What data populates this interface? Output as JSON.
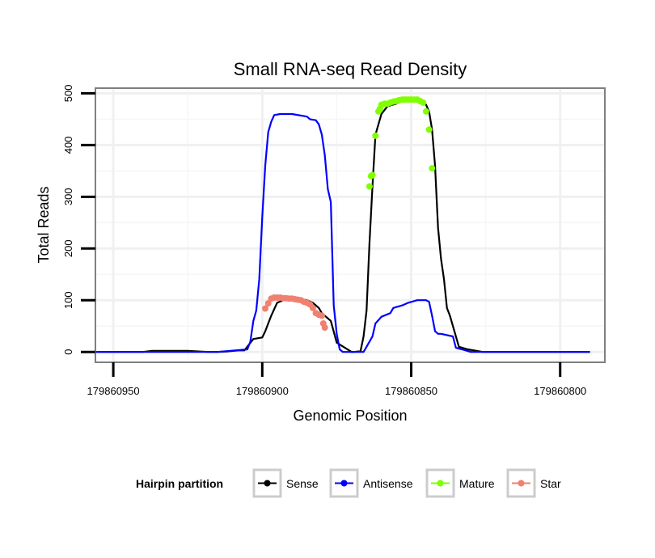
{
  "chart_data": {
    "type": "line",
    "title": "Small RNA-seq Read Density",
    "xlabel": "Genomic Position",
    "ylabel": "Total Reads",
    "xlim": [
      179860956,
      179860785
    ],
    "ylim": [
      -20,
      510
    ],
    "x_ticks": [
      179860950,
      179860900,
      179860850,
      179860800
    ],
    "x_tick_labels": [
      "179860950",
      "179860900",
      "179860850",
      "179860800"
    ],
    "y_ticks": [
      0,
      100,
      200,
      300,
      400,
      500
    ],
    "y_tick_labels": [
      "0",
      "100",
      "200",
      "300",
      "400",
      "500"
    ],
    "grid": true,
    "legend_title": "Hairpin partition",
    "legend_position": "bottom",
    "series": [
      {
        "name": "Sense",
        "color": "#000000",
        "markers": false,
        "x": [
          179860958,
          179860950,
          179860940,
          179860937,
          179860925,
          179860918,
          179860915,
          179860912,
          179860908,
          179860906,
          179860903,
          179860900,
          179860899,
          179860897,
          179860895,
          179860893,
          179860890,
          179860887,
          179860885,
          179860883,
          179860881,
          179860880,
          179860879,
          179860877,
          179860875,
          179860870,
          179860869,
          179860868,
          179860867,
          179860866,
          179860865,
          179860864,
          179860863,
          179860862,
          179860860,
          179860858,
          179860855,
          179860852,
          179860850,
          179860848,
          179860847,
          179860846,
          179860845,
          179860844,
          179860843,
          179860842,
          179860841,
          179860840,
          179860839,
          179860838,
          179860837,
          179860834,
          179860831,
          179860826,
          179860820,
          179860810,
          179860790
        ],
        "y": [
          0,
          0,
          0,
          2,
          2,
          0,
          0,
          1,
          3,
          3,
          25,
          28,
          40,
          70,
          95,
          100,
          102,
          102,
          100,
          95,
          85,
          75,
          70,
          60,
          18,
          0,
          0,
          1,
          2,
          30,
          80,
          210,
          320,
          420,
          460,
          475,
          480,
          488,
          490,
          490,
          489,
          485,
          478,
          465,
          430,
          360,
          240,
          180,
          140,
          85,
          70,
          10,
          5,
          0,
          0,
          0,
          0
        ]
      },
      {
        "name": "Antisense",
        "color": "#0000ff",
        "markers": false,
        "x": [
          179860958,
          179860940,
          179860925,
          179860915,
          179860905,
          179860904,
          179860903,
          179860902,
          179860901,
          179860900,
          179860899,
          179860898,
          179860897,
          179860896,
          179860894,
          179860892,
          179860890,
          179860885,
          179860884,
          179860882,
          179860881,
          179860880,
          179860879,
          179860878,
          179860877,
          179860876,
          179860875,
          179860874,
          179860873,
          179860871,
          179860869,
          179860866,
          179860865,
          179860863,
          179860862,
          179860860,
          179860857,
          179860856,
          179860853,
          179860851,
          179860848,
          179860847,
          179860846,
          179860845,
          179860844,
          179860843,
          179860842,
          179860841,
          179860840,
          179860836,
          179860835,
          179860833,
          179860830,
          179860825,
          179860790
        ],
        "y": [
          0,
          0,
          0,
          0,
          5,
          20,
          60,
          80,
          140,
          260,
          360,
          425,
          445,
          458,
          460,
          460,
          460,
          455,
          450,
          448,
          440,
          420,
          380,
          315,
          290,
          90,
          35,
          5,
          0,
          0,
          0,
          0,
          10,
          30,
          55,
          68,
          75,
          85,
          90,
          95,
          100,
          100,
          100,
          100,
          97,
          70,
          40,
          35,
          35,
          30,
          8,
          5,
          0,
          0,
          0
        ]
      },
      {
        "name": "Mature",
        "color": "#7fff00",
        "markers": true,
        "x": [
          179860864,
          179860863.5,
          179860863,
          179860862,
          179860861,
          179860860.5,
          179860860,
          179860859,
          179860858,
          179860857,
          179860856,
          179860855,
          179860854,
          179860853,
          179860852,
          179860851,
          179860850,
          179860849,
          179860848,
          179860847,
          179860846,
          179860845,
          179860844,
          179860843
        ],
        "y": [
          320,
          340,
          342,
          418,
          465,
          470,
          478,
          480,
          480,
          482,
          484,
          485,
          487,
          488,
          488,
          488,
          488,
          488,
          488,
          485,
          482,
          465,
          430,
          355
        ]
      },
      {
        "name": "Star",
        "color": "#f08070",
        "markers": true,
        "x": [
          179860899,
          179860898,
          179860897,
          179860896,
          179860895,
          179860894,
          179860893,
          179860892,
          179860891,
          179860890,
          179860889,
          179860888,
          179860887,
          179860886,
          179860885,
          179860884,
          179860883,
          179860882,
          179860881,
          179860880,
          179860879.5,
          179860879
        ],
        "y": [
          84,
          94,
          103,
          105,
          105,
          105,
          104,
          104,
          103,
          103,
          102,
          101,
          100,
          97,
          95,
          92,
          85,
          75,
          72,
          70,
          55,
          47
        ]
      }
    ]
  }
}
